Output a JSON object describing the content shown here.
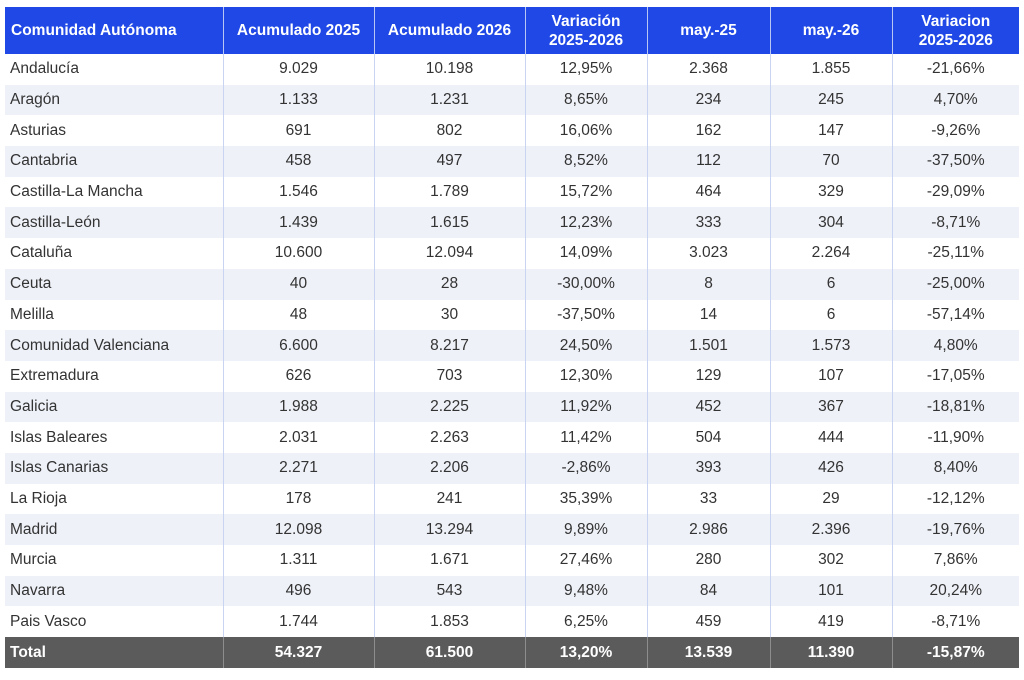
{
  "table": {
    "headers": [
      "Comunidad Autónoma",
      "Acumulado 2025",
      "Acumulado 2026",
      "Variación\n2025-2026",
      "may.-25",
      "may.-26",
      "Variacion\n2025-2026"
    ],
    "rows": [
      [
        "Andalucía",
        "9.029",
        "10.198",
        "12,95%",
        "2.368",
        "1.855",
        "-21,66%"
      ],
      [
        "Aragón",
        "1.133",
        "1.231",
        "8,65%",
        "234",
        "245",
        "4,70%"
      ],
      [
        "Asturias",
        "691",
        "802",
        "16,06%",
        "162",
        "147",
        "-9,26%"
      ],
      [
        "Cantabria",
        "458",
        "497",
        "8,52%",
        "112",
        "70",
        "-37,50%"
      ],
      [
        "Castilla-La Mancha",
        "1.546",
        "1.789",
        "15,72%",
        "464",
        "329",
        "-29,09%"
      ],
      [
        "Castilla-León",
        "1.439",
        "1.615",
        "12,23%",
        "333",
        "304",
        "-8,71%"
      ],
      [
        "Cataluña",
        "10.600",
        "12.094",
        "14,09%",
        "3.023",
        "2.264",
        "-25,11%"
      ],
      [
        "Ceuta",
        "40",
        "28",
        "-30,00%",
        "8",
        "6",
        "-25,00%"
      ],
      [
        "Melilla",
        "48",
        "30",
        "-37,50%",
        "14",
        "6",
        "-57,14%"
      ],
      [
        "Comunidad Valenciana",
        "6.600",
        "8.217",
        "24,50%",
        "1.501",
        "1.573",
        "4,80%"
      ],
      [
        "Extremadura",
        "626",
        "703",
        "12,30%",
        "129",
        "107",
        "-17,05%"
      ],
      [
        "Galicia",
        "1.988",
        "2.225",
        "11,92%",
        "452",
        "367",
        "-18,81%"
      ],
      [
        "Islas Baleares",
        "2.031",
        "2.263",
        "11,42%",
        "504",
        "444",
        "-11,90%"
      ],
      [
        "Islas Canarias",
        "2.271",
        "2.206",
        "-2,86%",
        "393",
        "426",
        "8,40%"
      ],
      [
        "La Rioja",
        "178",
        "241",
        "35,39%",
        "33",
        "29",
        "-12,12%"
      ],
      [
        "Madrid",
        "12.098",
        "13.294",
        "9,89%",
        "2.986",
        "2.396",
        "-19,76%"
      ],
      [
        "Murcia",
        "1.311",
        "1.671",
        "27,46%",
        "280",
        "302",
        "7,86%"
      ],
      [
        "Navarra",
        "496",
        "543",
        "9,48%",
        "84",
        "101",
        "20,24%"
      ],
      [
        "Pais Vasco",
        "1.744",
        "1.853",
        "6,25%",
        "459",
        "419",
        "-8,71%"
      ]
    ],
    "total": [
      "Total",
      "54.327",
      "61.500",
      "13,20%",
      "13.539",
      "11.390",
      "-15,87%"
    ]
  },
  "colors": {
    "header_bg": "#1f48e6",
    "header_text": "#ffffff",
    "row_stripe": "#eef1f8",
    "total_bg": "#5b5b5b",
    "body_text": "#333333"
  }
}
